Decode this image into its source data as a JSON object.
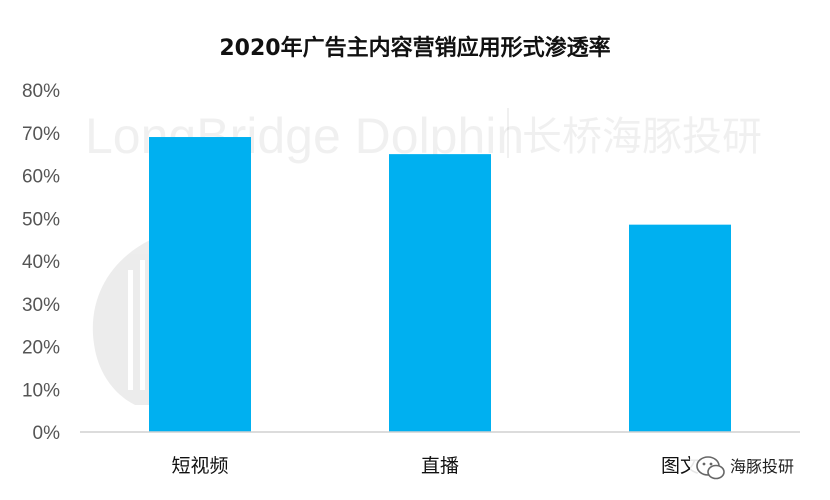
{
  "chart_data": {
    "type": "bar",
    "title": "2020年广告主内容营销应用形式渗透率",
    "categories": [
      "短视频",
      "直播",
      "图文"
    ],
    "values": [
      0.69,
      0.65,
      0.485
    ],
    "ylim": [
      0,
      0.8
    ],
    "yticks": [
      "0%",
      "10%",
      "20%",
      "30%",
      "40%",
      "50%",
      "60%",
      "70%",
      "80%"
    ],
    "bar_color": "#00B0F0",
    "grid": false,
    "legend": "none"
  },
  "watermark": {
    "text_en": "LongBridge Dolphin",
    "text_cn": "长桥海豚投研"
  },
  "badge": {
    "icon": "wechat-icon",
    "text": "海豚投研"
  }
}
